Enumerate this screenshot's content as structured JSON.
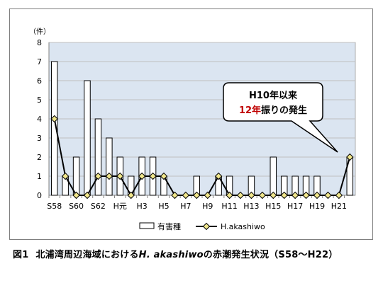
{
  "caption": {
    "figure_label": "図1",
    "text_before": "北浦湾周辺海域における",
    "species": "H. akashiwo",
    "text_after": "の赤潮発生状況（S58～H22）"
  },
  "colors": {
    "plot_bg": "#dbe5f1",
    "grid": "#bfbfbf",
    "bar_fill": "#ffffff",
    "bar_stroke": "#000000",
    "line": "#000000",
    "marker_fill": "#f0e68c",
    "marker_stroke": "#000000",
    "callout_highlight": "#c00000"
  },
  "chart_data": {
    "type": "bar",
    "ylabel": "（件）",
    "ylim": [
      0,
      8
    ],
    "yticks": [
      0,
      1,
      2,
      3,
      4,
      5,
      6,
      7,
      8
    ],
    "categories": [
      "S58",
      "S59",
      "S60",
      "S61",
      "S62",
      "S63",
      "H元",
      "H2",
      "H3",
      "H4",
      "H5",
      "H6",
      "H7",
      "H8",
      "H9",
      "H10",
      "H11",
      "H12",
      "H13",
      "H14",
      "H15",
      "H16",
      "H17",
      "H18",
      "H19",
      "H20",
      "H21",
      "H22"
    ],
    "x_tick_labels": [
      "S58",
      "",
      "S60",
      "",
      "S62",
      "",
      "H元",
      "",
      "H3",
      "",
      "H5",
      "",
      "H7",
      "",
      "H9",
      "",
      "H11",
      "",
      "H13",
      "",
      "H15",
      "",
      "H17",
      "",
      "H19",
      "",
      "H21",
      ""
    ],
    "series": [
      {
        "name": "有害種",
        "kind": "bar",
        "values": [
          7,
          1,
          2,
          6,
          4,
          3,
          2,
          1,
          2,
          2,
          1,
          0,
          0,
          1,
          0,
          1,
          1,
          0,
          1,
          0,
          2,
          1,
          1,
          1,
          1,
          0,
          0,
          2
        ]
      },
      {
        "name": "H.akashiwo",
        "kind": "line",
        "values": [
          4,
          1,
          0,
          0,
          1,
          1,
          1,
          0,
          1,
          1,
          1,
          0,
          0,
          0,
          0,
          1,
          0,
          0,
          0,
          0,
          0,
          0,
          0,
          0,
          0,
          0,
          0,
          2
        ]
      }
    ],
    "annotation": {
      "line1": "H10年以来",
      "line2_highlight": "12年",
      "line2_rest": "振りの発生"
    }
  }
}
